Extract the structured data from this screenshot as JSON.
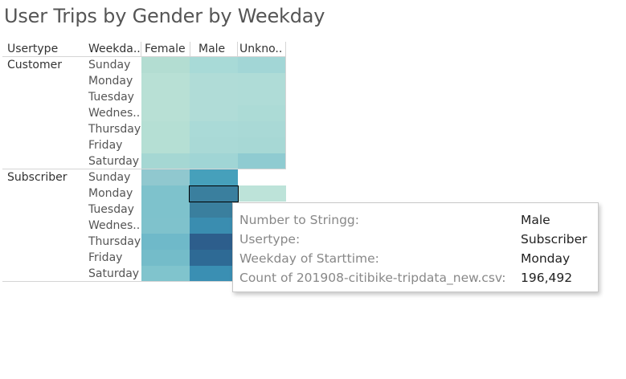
{
  "title": "User Trips by Gender by Weekday",
  "chart_data": {
    "type": "heatmap",
    "title": "User Trips by Gender by Weekday",
    "row_headers": {
      "usertype": "Usertype",
      "weekday": "Weekda.."
    },
    "columns": [
      "Female",
      "Male",
      "Unkno.."
    ],
    "groups": [
      {
        "usertype": "Customer",
        "weekdays": [
          "Sunday",
          "Monday",
          "Tuesday",
          "Wednes..",
          "Thursday",
          "Friday",
          "Saturday"
        ],
        "colors": [
          [
            "#b3ddd2",
            "#a8dad7",
            "#a2d6d6"
          ],
          [
            "#b8e0d5",
            "#b0dcd7",
            "#afdcd7"
          ],
          [
            "#b8e0d5",
            "#b0dcd7",
            "#afdcd7"
          ],
          [
            "#b8e0d5",
            "#b0dcd7",
            "#acdbd6"
          ],
          [
            "#b5dfd4",
            "#aadad7",
            "#a9d9d6"
          ],
          [
            "#b5dfd4",
            "#a9d9d6",
            "#a7d8d5"
          ],
          [
            "#a5d7d3",
            "#a0d5d5",
            "#8fcbd1"
          ]
        ]
      },
      {
        "usertype": "Subscriber",
        "weekdays": [
          "Sunday",
          "Monday",
          "Tuesday",
          "Wednes..",
          "Thursday",
          "Friday",
          "Saturday"
        ],
        "colors": [
          [
            "#90c8cf",
            "#46a0bb",
            null
          ],
          [
            "#7ec2cc",
            "#3a7f9e",
            "#bde3d9"
          ],
          [
            "#7ec2cc",
            "#3a7f9e",
            null
          ],
          [
            "#7fc2cc",
            "#3a8db0",
            null
          ],
          [
            "#6fb9c9",
            "#2d5e8c",
            null
          ],
          [
            "#74bcc9",
            "#2e6a95",
            null
          ],
          [
            "#80c4cd",
            "#3a8fb3",
            null
          ]
        ]
      }
    ],
    "highlighted": {
      "group": 1,
      "row": 1,
      "col": 1
    }
  },
  "tooltip": {
    "rows": [
      {
        "key": "Number to Stringg:",
        "value": "Male"
      },
      {
        "key": "Usertype:",
        "value": "Subscriber"
      },
      {
        "key": "Weekday of Starttime:",
        "value": "Monday"
      },
      {
        "key": "Count of 201908-citibike-tripdata_new.csv:",
        "value": "196,492"
      }
    ]
  }
}
